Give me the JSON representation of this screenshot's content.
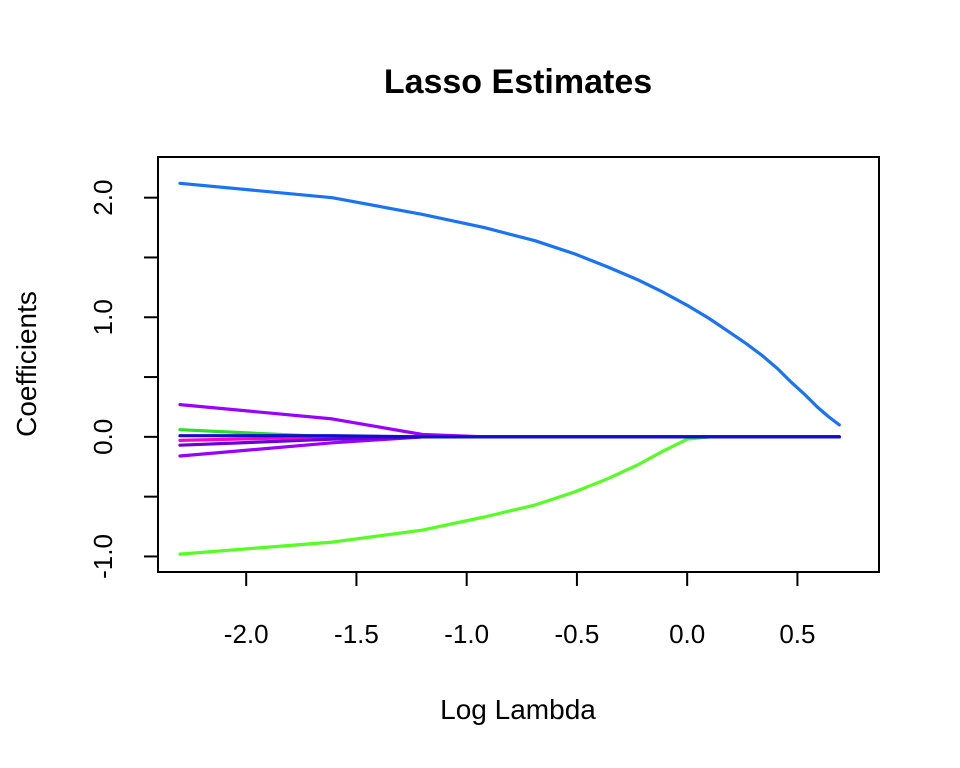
{
  "chart_data": {
    "type": "line",
    "title": "Lasso Estimates",
    "xlabel": "Log Lambda",
    "ylabel": "Coefficients",
    "xlim": [
      -2.4,
      0.87
    ],
    "ylim": [
      -1.13,
      2.34
    ],
    "xticks": [
      -2.0,
      -1.5,
      -1.0,
      -0.5,
      0.0,
      0.5
    ],
    "xtick_labels": [
      "-2.0",
      "-1.5",
      "-1.0",
      "-0.5",
      "0.0",
      "0.5"
    ],
    "yticks": [
      -1.0,
      -0.5,
      0.0,
      0.5,
      1.0,
      1.5,
      2.0
    ],
    "ytick_labels": [
      "-1.0",
      "",
      "0.0",
      "",
      "1.0",
      "",
      "2.0"
    ],
    "grid": false,
    "x": [
      -2.3,
      -1.61,
      -1.2,
      -0.92,
      -0.69,
      -0.51,
      -0.36,
      -0.22,
      -0.11,
      0.0,
      0.1,
      0.18,
      0.26,
      0.34,
      0.41,
      0.47,
      0.53,
      0.59,
      0.64,
      0.69
    ],
    "series": [
      {
        "color": "#1a73f5",
        "values": [
          2.12,
          2.0,
          1.86,
          1.75,
          1.64,
          1.53,
          1.42,
          1.31,
          1.21,
          1.1,
          0.99,
          0.89,
          0.79,
          0.68,
          0.57,
          0.46,
          0.36,
          0.25,
          0.17,
          0.1
        ]
      },
      {
        "color": "#55ff22",
        "values": [
          -0.98,
          -0.88,
          -0.78,
          -0.67,
          -0.57,
          -0.46,
          -0.35,
          -0.23,
          -0.12,
          -0.02,
          0,
          0,
          0,
          0,
          0,
          0,
          0,
          0,
          0,
          0
        ]
      },
      {
        "color": "#9900ff",
        "values": [
          0.27,
          0.15,
          0.02,
          0,
          0,
          0,
          0,
          0,
          0,
          0,
          0,
          0,
          0,
          0,
          0,
          0,
          0,
          0,
          0,
          0
        ]
      },
      {
        "color": "#9900ff",
        "values": [
          -0.16,
          -0.05,
          0.0,
          0,
          0,
          0,
          0,
          0,
          0,
          0,
          0,
          0,
          0,
          0,
          0,
          0,
          0,
          0,
          0,
          0
        ]
      },
      {
        "color": "#2bdc2b",
        "values": [
          0.06,
          0.0,
          0,
          0,
          0,
          0,
          0,
          0,
          0,
          0,
          0,
          0,
          0,
          0,
          0,
          0,
          0,
          0,
          0,
          0
        ]
      },
      {
        "color": "#ff00cc",
        "values": [
          -0.03,
          0.0,
          0,
          0,
          0,
          0,
          0,
          0,
          0,
          0,
          0,
          0,
          0,
          0,
          0,
          0,
          0,
          0,
          0,
          0
        ]
      },
      {
        "color": "#6a00d6",
        "values": [
          -0.07,
          -0.02,
          0,
          0,
          0,
          0,
          0,
          0,
          0,
          0,
          0,
          0,
          0,
          0,
          0,
          0,
          0,
          0,
          0,
          0
        ]
      },
      {
        "color": "#1010cc",
        "values": [
          0.01,
          0.01,
          0.0,
          0,
          0,
          0,
          0,
          0,
          0,
          0,
          0,
          0,
          0,
          0,
          0,
          0,
          0,
          0,
          0,
          0
        ]
      }
    ]
  }
}
